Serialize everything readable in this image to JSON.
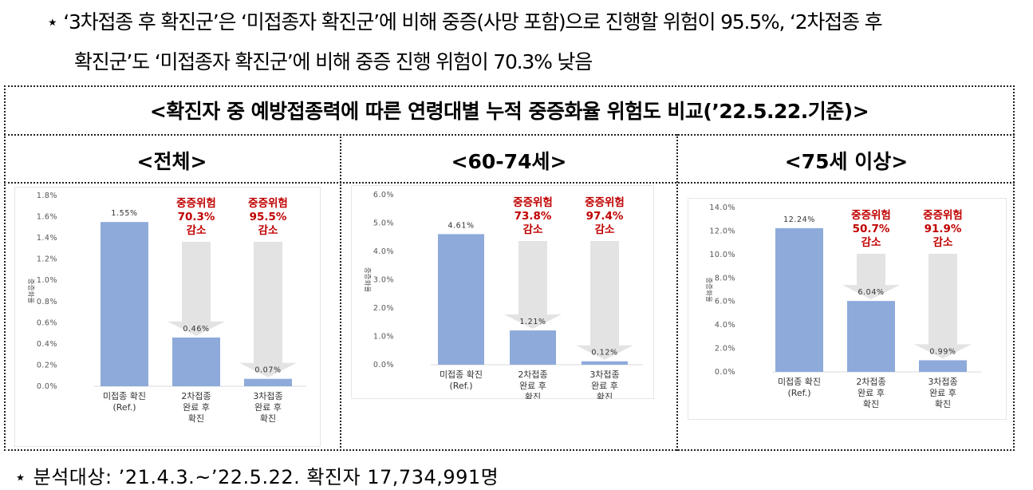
{
  "notes": {
    "line1": "⋆ ‘3차접종 후 확진군’은 ‘미접종자 확진군’에 비해 중증(사망 포함)으로 진행할 위험이 95.5%, ‘2차접종 후",
    "line2": "확진군’도 ‘미접종자 확진군’에 비해 중증 진행 위험이 70.3% 낮음"
  },
  "main_title": "<확진자 중 예방접종력에 따른 연령대별 누적 중증화율 위험도 비교(’22.5.22.기준)>",
  "footer": "⋆ 분석대상: ’21.4.3.~’22.5.22. 확진자 17,734,991명",
  "colors": {
    "bar": "#8eaadb",
    "annotation": "#c00000",
    "arrow": "#e3e3e3"
  },
  "chart_data": [
    {
      "type": "bar",
      "panel_title": "<전체>",
      "ylabel": "중증화율",
      "ylim": [
        0,
        1.8
      ],
      "yticks": [
        "0.0%",
        "0.2%",
        "0.4%",
        "0.6%",
        "0.8%",
        "1.0%",
        "1.2%",
        "1.4%",
        "1.6%",
        "1.8%"
      ],
      "categories": [
        [
          "미접종 확진",
          "(Ref.)"
        ],
        [
          "2차접종",
          "완료 후",
          "확진"
        ],
        [
          "3차접종",
          "완료 후",
          "확진"
        ]
      ],
      "values": [
        1.55,
        0.46,
        0.07
      ],
      "data_labels": [
        "1.55%",
        "0.46%",
        "0.07%"
      ],
      "annotations": [
        [
          "중증위험",
          "70.3%",
          "감소"
        ],
        [
          "중증위험",
          "95.5%",
          "감소"
        ]
      ]
    },
    {
      "type": "bar",
      "panel_title": "<60-74세>",
      "ylabel": "중증화율",
      "ylim": [
        0,
        6.0
      ],
      "yticks": [
        "0.0%",
        "1.0%",
        "2.0%",
        "3.0%",
        "4.0%",
        "5.0%",
        "6.0%"
      ],
      "categories": [
        [
          "미접종 확진",
          "(Ref.)"
        ],
        [
          "2차접종",
          "완료 후",
          "확진"
        ],
        [
          "3차접종",
          "완료 후",
          "확진"
        ]
      ],
      "values": [
        4.61,
        1.21,
        0.12
      ],
      "data_labels": [
        "4.61%",
        "1.21%",
        "0.12%"
      ],
      "annotations": [
        [
          "중증위험",
          "73.8%",
          "감소"
        ],
        [
          "중증위험",
          "97.4%",
          "감소"
        ]
      ]
    },
    {
      "type": "bar",
      "panel_title": "<75세 이상>",
      "ylabel": "중증화율",
      "ylim": [
        0,
        14.0
      ],
      "yticks": [
        "0.0%",
        "2.0%",
        "4.0%",
        "6.0%",
        "8.0%",
        "10.0%",
        "12.0%",
        "14.0%"
      ],
      "categories": [
        [
          "미접종 확진",
          "(Ref.)"
        ],
        [
          "2차접종",
          "완료 후",
          "확진"
        ],
        [
          "3차접종",
          "완료 후",
          "확진"
        ]
      ],
      "values": [
        12.24,
        6.04,
        0.99
      ],
      "data_labels": [
        "12.24%",
        "6.04%",
        "0.99%"
      ],
      "annotations": [
        [
          "중증위험",
          "50.7%",
          "감소"
        ],
        [
          "중증위험",
          "91.9%",
          "감소"
        ]
      ]
    }
  ]
}
